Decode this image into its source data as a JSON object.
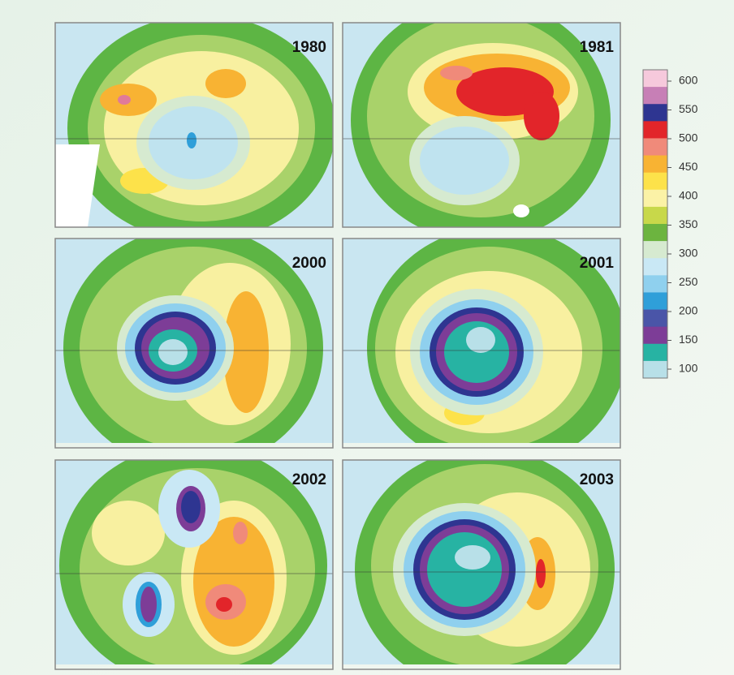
{
  "panels": [
    {
      "label": "1980"
    },
    {
      "label": "1981"
    },
    {
      "label": "2000"
    },
    {
      "label": "2001"
    },
    {
      "label": "2002"
    },
    {
      "label": "2003"
    }
  ],
  "colorbar": {
    "ticks": [
      600,
      550,
      500,
      450,
      400,
      350,
      300,
      250,
      200,
      150,
      100
    ],
    "colors": [
      "#f6c9dc",
      "#c77fb6",
      "#2e3591",
      "#e2252a",
      "#f08a7a",
      "#f8b333",
      "#fde24a",
      "#fbf2a6",
      "#c8d84a",
      "#6cb43f",
      "#d6ead0",
      "#c9e8f5",
      "#8fd0ee",
      "#2f9fd9",
      "#4a55a8",
      "#7d3d97",
      "#27b3a3",
      "#b8e0e8"
    ]
  }
}
